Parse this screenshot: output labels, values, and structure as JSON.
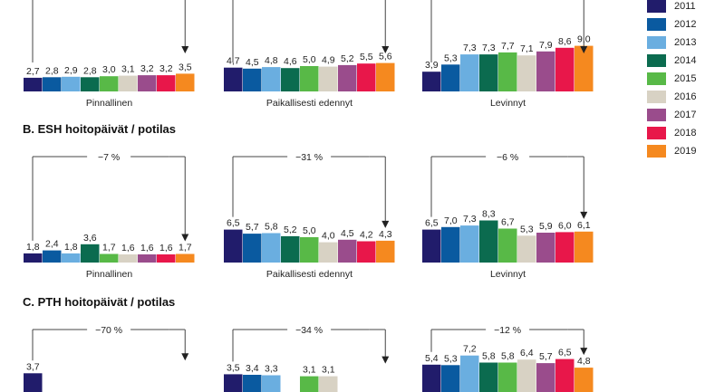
{
  "chart_data": {
    "type": "bar",
    "years": [
      "2011",
      "2012",
      "2013",
      "2014",
      "2015",
      "2016",
      "2017",
      "2018",
      "2019"
    ],
    "colors": [
      "#211c6b",
      "#0a5aa0",
      "#6aaee0",
      "#0b6b4f",
      "#58b947",
      "#d8d2c4",
      "#9a4c8c",
      "#e8174a",
      "#f5891f"
    ],
    "panels": [
      {
        "title": "",
        "groups": [
          {
            "name": "Pinnallinen",
            "values": [
              2.7,
              2.8,
              2.9,
              2.8,
              3.0,
              3.1,
              3.2,
              3.2,
              3.5
            ],
            "labels": [
              "2,7",
              "2,8",
              "2,9",
              "2,8",
              "3,0",
              "3,1",
              "3,2",
              "3,2",
              "3,5"
            ],
            "change": ""
          },
          {
            "name": "Paikallisesti edennyt",
            "values": [
              4.7,
              4.5,
              4.8,
              4.6,
              5.0,
              4.9,
              5.2,
              5.5,
              5.6
            ],
            "labels": [
              "4,7",
              "4,5",
              "4,8",
              "4,6",
              "5,0",
              "4,9",
              "5,2",
              "5,5",
              "5,6"
            ],
            "change": ""
          },
          {
            "name": "Levinnyt",
            "values": [
              3.9,
              5.3,
              7.3,
              7.3,
              7.7,
              7.1,
              7.9,
              8.6,
              9.0
            ],
            "labels": [
              "3,9",
              "5,3",
              "7,3",
              "7,3",
              "7,7",
              "7,1",
              "7,9",
              "8,6",
              "9,0"
            ],
            "change": ""
          }
        ]
      },
      {
        "title": "B. ESH hoitopäivät / potilas",
        "groups": [
          {
            "name": "Pinnallinen",
            "values": [
              1.8,
              2.4,
              1.8,
              3.6,
              1.7,
              1.6,
              1.6,
              1.6,
              1.7
            ],
            "labels": [
              "1,8",
              "2,4",
              "1,8",
              "3,6",
              "1,7",
              "1,6",
              "1,6",
              "1,6",
              "1,7"
            ],
            "change": "−7 %"
          },
          {
            "name": "Paikallisesti edennyt",
            "values": [
              6.5,
              5.7,
              5.8,
              5.2,
              5.0,
              4.0,
              4.5,
              4.2,
              4.3
            ],
            "labels": [
              "6,5",
              "5,7",
              "5,8",
              "5,2",
              "5,0",
              "4,0",
              "4,5",
              "4,2",
              "4,3"
            ],
            "change": "−31 %"
          },
          {
            "name": "Levinnyt",
            "values": [
              6.5,
              7.0,
              7.3,
              8.3,
              6.7,
              5.3,
              5.9,
              6.0,
              6.1
            ],
            "labels": [
              "6,5",
              "7,0",
              "7,3",
              "8,3",
              "6,7",
              "5,3",
              "5,9",
              "6,0",
              "6,1"
            ],
            "change": "−6 %"
          }
        ]
      },
      {
        "title": "C. PTH hoitopäivät / potilas",
        "groups": [
          {
            "name": "Pinnallinen",
            "values": [
              3.7,
              null,
              null,
              null,
              null,
              null,
              null,
              null,
              null
            ],
            "labels": [
              "3,7",
              "",
              "",
              "",
              "",
              "",
              "",
              "",
              ""
            ],
            "change": "−70 %"
          },
          {
            "name": "Paikallisesti edennyt",
            "values": [
              3.5,
              3.4,
              3.3,
              null,
              3.1,
              3.1,
              null,
              null,
              null
            ],
            "labels": [
              "3,5",
              "3,4",
              "3,3",
              "",
              "3,1",
              "3,1",
              "",
              "",
              ""
            ],
            "change": "−34 %"
          },
          {
            "name": "Levinnyt",
            "values": [
              5.4,
              5.3,
              7.2,
              5.8,
              5.8,
              6.4,
              5.7,
              6.5,
              4.8
            ],
            "labels": [
              "5,4",
              "5,3",
              "7,2",
              "5,8",
              "5,8",
              "6,4",
              "5,7",
              "6,5",
              "4,8"
            ],
            "change": "−12 %"
          }
        ]
      }
    ]
  }
}
